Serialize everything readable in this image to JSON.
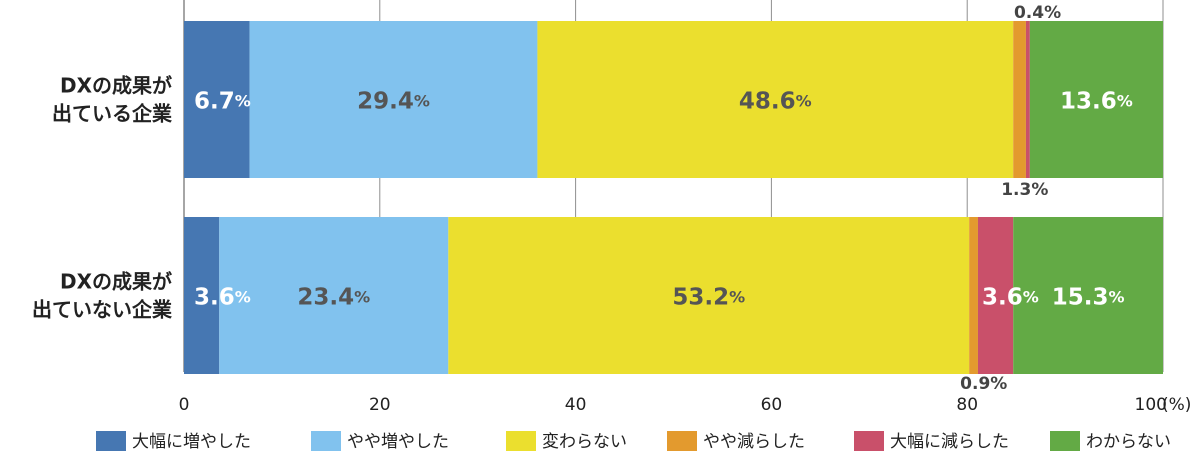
{
  "chart_data": {
    "type": "bar",
    "orientation": "horizontal",
    "stacked": true,
    "categories": [
      [
        "DXの成果が",
        "出ている企業"
      ],
      [
        "DXの成果が",
        "出ていない企業"
      ]
    ],
    "series": [
      {
        "name": "大幅に増やした",
        "color": "#4677b2",
        "values": [
          6.7,
          3.6
        ]
      },
      {
        "name": "やや増やした",
        "color": "#81c2ee",
        "values": [
          29.4,
          23.4
        ]
      },
      {
        "name": "変わらない",
        "color": "#ebdf2e",
        "values": [
          48.6,
          53.2
        ]
      },
      {
        "name": "やや減らした",
        "color": "#e39a2e",
        "values": [
          1.3,
          0.9
        ]
      },
      {
        "name": "大幅に減らした",
        "color": "#c9506a",
        "values": [
          0.4,
          3.6
        ]
      },
      {
        "name": "わからない",
        "color": "#63aa45",
        "values": [
          13.6,
          15.3
        ]
      }
    ],
    "data_labels": [
      [
        "6.7",
        "29.4",
        "48.6",
        "1.3",
        "0.4",
        "13.6"
      ],
      [
        "3.6",
        "23.4",
        "53.2",
        "0.9",
        "3.6",
        "15.3"
      ]
    ],
    "percent_sign": "%",
    "xlim": [
      0,
      100
    ],
    "xticks": [
      "0",
      "20",
      "40",
      "60",
      "80",
      "100"
    ],
    "x_unit": "(%)",
    "grid": true,
    "legend_position": "bottom"
  }
}
